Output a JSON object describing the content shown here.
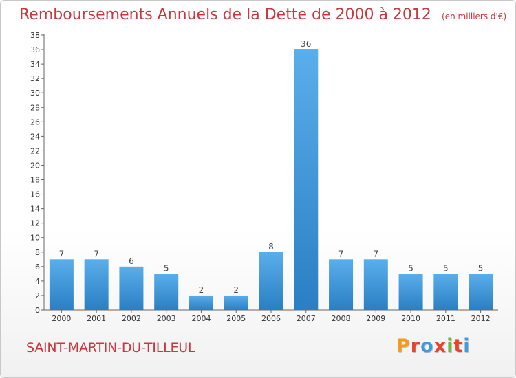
{
  "title": "Remboursements Annuels de la Dette de 2000 à 2012",
  "subtitle": "(en milliers d'€)",
  "commune": "SAINT-MARTIN-DU-TILLEUL",
  "logo": {
    "letters": [
      "P",
      "r",
      "o",
      "x",
      "i",
      "t",
      "i"
    ],
    "colors": [
      "#f29b1e",
      "#e6452b",
      "#3f9be0",
      "#e6452b",
      "#72b63b",
      "#e6452b",
      "#3f9be0"
    ]
  },
  "chart_data": {
    "type": "bar",
    "categories": [
      "2000",
      "2001",
      "2002",
      "2003",
      "2004",
      "2005",
      "2006",
      "2007",
      "2008",
      "2009",
      "2010",
      "2011",
      "2012"
    ],
    "values": [
      7,
      7,
      6,
      5,
      2,
      2,
      8,
      36,
      7,
      7,
      5,
      5,
      5
    ],
    "data_labels": [
      "7",
      "7",
      "6",
      "5",
      "2",
      "2",
      "8",
      "36",
      "7",
      "7",
      "5",
      "5",
      "5"
    ],
    "title": "Remboursements Annuels de la Dette de 2000 à 2012",
    "xlabel": "",
    "ylabel": "",
    "ylim": [
      0,
      38
    ],
    "yticks": [
      "0",
      "2",
      "4",
      "6",
      "8",
      "10",
      "12",
      "14",
      "16",
      "18",
      "20",
      "22",
      "24",
      "26",
      "28",
      "30",
      "32",
      "34",
      "36",
      "38"
    ],
    "grid": false,
    "bar_color": "#3d97dc"
  }
}
